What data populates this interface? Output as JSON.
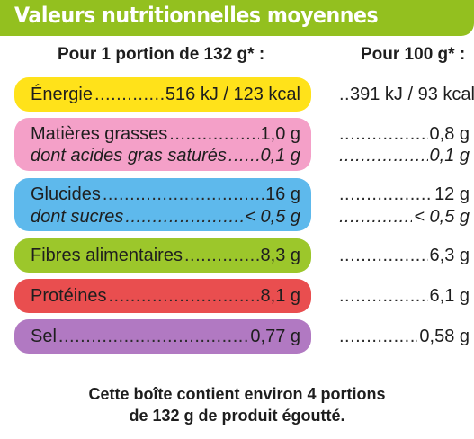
{
  "title": "Valeurs nutritionnelles moyennes",
  "col_portion": "Pour 1 portion de 132 g* :",
  "col_100g": "Pour 100 g* :",
  "colors": {
    "header": "#93c01f",
    "energie": "#ffe21a",
    "matieres_grasses": "#f4a0c8",
    "glucides": "#5eb9ec",
    "fibres": "#9cc72b",
    "proteines": "#e94e4f",
    "sel": "#b179c2"
  },
  "rows": [
    {
      "label": "Énergie",
      "portion": "516 kJ / 123 kcal",
      "per100": "391 kJ / 93 kcal"
    },
    {
      "label": "Matières grasses",
      "portion": "1,0 g",
      "per100": "0,8 g"
    },
    {
      "label": "dont acides gras saturés",
      "portion": "0,1 g",
      "per100": "0,1 g"
    },
    {
      "label": "Glucides",
      "portion": "16 g",
      "per100": "12 g"
    },
    {
      "label": "dont sucres",
      "portion": "< 0,5 g",
      "per100": "< 0,5 g"
    },
    {
      "label": "Fibres alimentaires",
      "portion": "8,3 g",
      "per100": "6,3 g"
    },
    {
      "label": "Protéines",
      "portion": "8,1 g",
      "per100": "6,1 g"
    },
    {
      "label": "Sel",
      "portion": "0,77 g",
      "per100": "0,58 g"
    }
  ],
  "footer": {
    "line1": "Cette boîte contient environ 4 portions",
    "line2": "de 132 g de produit égoutté."
  }
}
